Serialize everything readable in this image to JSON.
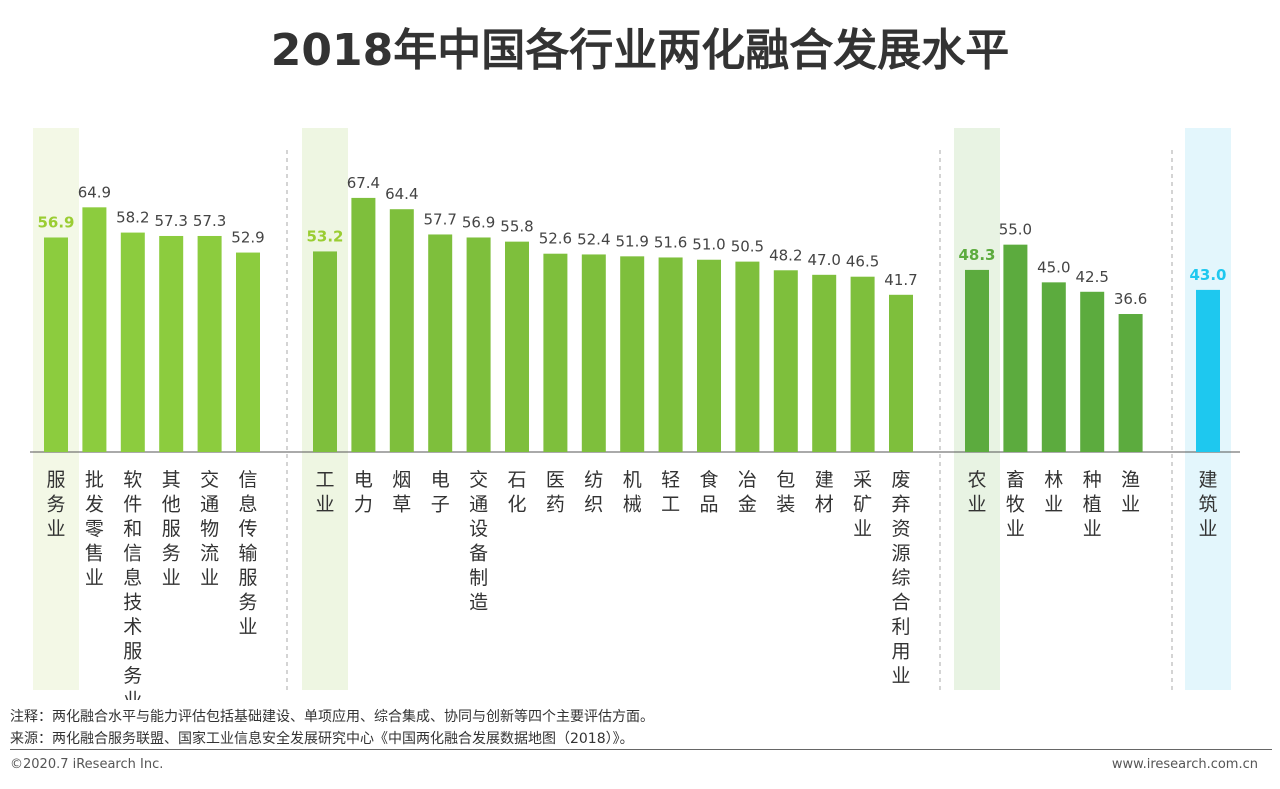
{
  "title": "2018年中国各行业两化融合发展水平",
  "chart_data": {
    "type": "bar",
    "title": "2018年中国各行业两化融合发展水平",
    "ylim": [
      0,
      80
    ],
    "grid": false,
    "groups": [
      {
        "categories": [
          "服务业",
          "批发零售业",
          "软件和信息技术服务业",
          "其他服务业",
          "交通物流业",
          "信息传输服务业"
        ],
        "values": [
          56.9,
          64.9,
          58.2,
          57.3,
          57.3,
          52.9
        ],
        "highlight_index": 0,
        "color": "#8ccc3e",
        "highlight_label_color": "#9acd32",
        "highlight_bg": "#f3f8e6"
      },
      {
        "categories": [
          "工业",
          "电力",
          "烟草",
          "电子",
          "交通设备制造",
          "石化",
          "医药",
          "纺织",
          "机械",
          "轻工",
          "食品",
          "冶金",
          "包装",
          "建材",
          "采矿业",
          "废弃资源综合利用业"
        ],
        "values": [
          53.2,
          67.4,
          64.4,
          57.7,
          56.9,
          55.8,
          52.6,
          52.4,
          51.9,
          51.6,
          51.0,
          50.5,
          48.2,
          47.0,
          46.5,
          41.7
        ],
        "highlight_index": 0,
        "color": "#7ebf3c",
        "highlight_label_color": "#9acd32",
        "highlight_bg": "#eef6e2"
      },
      {
        "categories": [
          "农业",
          "畜牧业",
          "林业",
          "种植业",
          "渔业"
        ],
        "values": [
          48.3,
          55.0,
          45.0,
          42.5,
          36.6
        ],
        "highlight_index": 0,
        "color": "#5cab3e",
        "highlight_label_color": "#5cab3e",
        "highlight_bg": "#e8f3e3"
      },
      {
        "categories": [
          "建筑业"
        ],
        "values": [
          43.0
        ],
        "highlight_index": 0,
        "color": "#1ec8ef",
        "highlight_label_color": "#1ec8ef",
        "highlight_bg": "#e3f6fc"
      }
    ]
  },
  "notes": {
    "note": "注释：两化融合水平与能力评估包括基础建设、单项应用、综合集成、协同与创新等四个主要评估方面。",
    "source": "来源：两化融合服务联盟、国家工业信息安全发展研究中心《中国两化融合发展数据地图（2018）》。"
  },
  "footer": {
    "copyright": "©2020.7 iResearch Inc.",
    "website": "www.iresearch.com.cn"
  }
}
